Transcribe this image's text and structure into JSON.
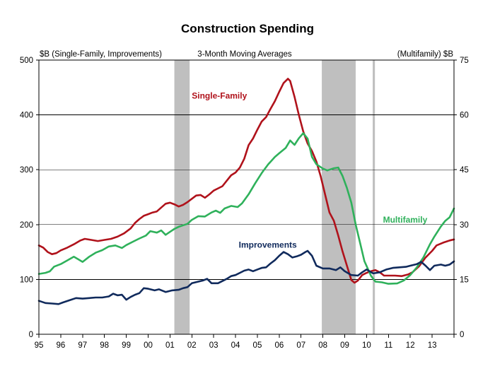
{
  "chart_data": {
    "type": "line",
    "title": "Construction Spending",
    "subtitle": "3-Month Moving Averages",
    "ylabel_left": "$B (Single-Family, Improvements)",
    "ylabel_right": "(Multifamily)  $B",
    "ylim_left": [
      0,
      500
    ],
    "ylim_right": [
      0,
      75
    ],
    "yticks_left": [
      0,
      100,
      200,
      300,
      400,
      500
    ],
    "yticks_right": [
      0,
      15,
      30,
      45,
      60,
      75
    ],
    "xlim": [
      1995,
      2014
    ],
    "xticks": [
      "95",
      "96",
      "97",
      "98",
      "99",
      "00",
      "01",
      "02",
      "03",
      "04",
      "05",
      "06",
      "07",
      "08",
      "09",
      "10",
      "11",
      "12",
      "13"
    ],
    "grid": true,
    "recessions": [
      {
        "start": 2001.2,
        "end": 2001.9
      },
      {
        "start": 2007.95,
        "end": 2009.5
      },
      {
        "start": 2010.28,
        "end": 2010.38
      }
    ],
    "series": [
      {
        "name": "Single-Family",
        "axis": "left",
        "color": "#b0121b",
        "label_at": [
          2002.0,
          430
        ],
        "points": [
          [
            1995.0,
            162
          ],
          [
            1995.2,
            158
          ],
          [
            1995.4,
            150
          ],
          [
            1995.6,
            146
          ],
          [
            1995.8,
            148
          ],
          [
            1996.0,
            153
          ],
          [
            1996.3,
            158
          ],
          [
            1996.6,
            164
          ],
          [
            1996.9,
            171
          ],
          [
            1997.1,
            174
          ],
          [
            1997.4,
            172
          ],
          [
            1997.7,
            170
          ],
          [
            1998.0,
            172
          ],
          [
            1998.3,
            174
          ],
          [
            1998.6,
            178
          ],
          [
            1998.9,
            184
          ],
          [
            1999.2,
            193
          ],
          [
            1999.4,
            203
          ],
          [
            1999.6,
            210
          ],
          [
            1999.8,
            216
          ],
          [
            2000.0,
            219
          ],
          [
            2000.2,
            222
          ],
          [
            2000.4,
            224
          ],
          [
            2000.6,
            231
          ],
          [
            2000.8,
            238
          ],
          [
            2001.0,
            240
          ],
          [
            2001.2,
            237
          ],
          [
            2001.4,
            233
          ],
          [
            2001.6,
            236
          ],
          [
            2001.8,
            241
          ],
          [
            2002.0,
            247
          ],
          [
            2002.2,
            253
          ],
          [
            2002.4,
            254
          ],
          [
            2002.6,
            249
          ],
          [
            2002.8,
            255
          ],
          [
            2003.0,
            262
          ],
          [
            2003.2,
            266
          ],
          [
            2003.4,
            270
          ],
          [
            2003.6,
            280
          ],
          [
            2003.8,
            290
          ],
          [
            2004.0,
            295
          ],
          [
            2004.2,
            304
          ],
          [
            2004.4,
            320
          ],
          [
            2004.6,
            345
          ],
          [
            2004.8,
            357
          ],
          [
            2005.0,
            373
          ],
          [
            2005.2,
            388
          ],
          [
            2005.4,
            396
          ],
          [
            2005.6,
            411
          ],
          [
            2005.8,
            425
          ],
          [
            2006.0,
            442
          ],
          [
            2006.2,
            458
          ],
          [
            2006.4,
            466
          ],
          [
            2006.5,
            462
          ],
          [
            2006.7,
            433
          ],
          [
            2006.9,
            400
          ],
          [
            2007.1,
            370
          ],
          [
            2007.3,
            348
          ],
          [
            2007.5,
            334
          ],
          [
            2007.7,
            315
          ],
          [
            2007.9,
            288
          ],
          [
            2008.1,
            255
          ],
          [
            2008.3,
            222
          ],
          [
            2008.5,
            207
          ],
          [
            2008.7,
            180
          ],
          [
            2008.9,
            151
          ],
          [
            2009.1,
            125
          ],
          [
            2009.3,
            99
          ],
          [
            2009.45,
            94
          ],
          [
            2009.6,
            98
          ],
          [
            2009.8,
            108
          ],
          [
            2010.0,
            112
          ],
          [
            2010.2,
            115
          ],
          [
            2010.4,
            117
          ],
          [
            2010.6,
            113
          ],
          [
            2010.8,
            107
          ],
          [
            2011.0,
            107
          ],
          [
            2011.3,
            107
          ],
          [
            2011.6,
            106
          ],
          [
            2011.9,
            109
          ],
          [
            2012.1,
            113
          ],
          [
            2012.4,
            124
          ],
          [
            2012.7,
            140
          ],
          [
            2013.0,
            152
          ],
          [
            2013.2,
            162
          ],
          [
            2013.5,
            167
          ],
          [
            2013.8,
            171
          ],
          [
            2014.0,
            173
          ]
        ]
      },
      {
        "name": "Multifamily",
        "axis": "right",
        "color": "#2fb15b",
        "label_at": [
          2010.75,
          30.5
        ],
        "points": [
          [
            1995.0,
            16.5
          ],
          [
            1995.3,
            16.8
          ],
          [
            1995.5,
            17.2
          ],
          [
            1995.7,
            18.5
          ],
          [
            1996.0,
            19.2
          ],
          [
            1996.3,
            20.2
          ],
          [
            1996.6,
            21.2
          ],
          [
            1996.8,
            20.5
          ],
          [
            1997.0,
            19.8
          ],
          [
            1997.3,
            21.2
          ],
          [
            1997.6,
            22.3
          ],
          [
            1997.9,
            23.0
          ],
          [
            1998.2,
            24.0
          ],
          [
            1998.5,
            24.3
          ],
          [
            1998.8,
            23.6
          ],
          [
            1999.0,
            24.4
          ],
          [
            1999.3,
            25.3
          ],
          [
            1999.6,
            26.2
          ],
          [
            1999.9,
            27.0
          ],
          [
            2000.1,
            28.2
          ],
          [
            2000.4,
            27.8
          ],
          [
            2000.6,
            28.4
          ],
          [
            2000.8,
            27.2
          ],
          [
            2001.0,
            28.0
          ],
          [
            2001.2,
            28.8
          ],
          [
            2001.4,
            29.4
          ],
          [
            2001.6,
            29.8
          ],
          [
            2001.8,
            30.2
          ],
          [
            2002.0,
            31.3
          ],
          [
            2002.3,
            32.3
          ],
          [
            2002.6,
            32.2
          ],
          [
            2002.9,
            33.3
          ],
          [
            2003.1,
            33.8
          ],
          [
            2003.3,
            33.2
          ],
          [
            2003.5,
            34.4
          ],
          [
            2003.8,
            35.1
          ],
          [
            2004.1,
            34.8
          ],
          [
            2004.3,
            35.8
          ],
          [
            2004.6,
            38.3
          ],
          [
            2004.9,
            41.3
          ],
          [
            2005.2,
            44.1
          ],
          [
            2005.5,
            46.5
          ],
          [
            2005.8,
            48.5
          ],
          [
            2006.0,
            49.5
          ],
          [
            2006.3,
            51.0
          ],
          [
            2006.5,
            53.0
          ],
          [
            2006.7,
            51.8
          ],
          [
            2006.9,
            53.6
          ],
          [
            2007.1,
            55.0
          ],
          [
            2007.3,
            53.5
          ],
          [
            2007.5,
            48.5
          ],
          [
            2007.7,
            46.5
          ],
          [
            2008.0,
            45.3
          ],
          [
            2008.2,
            44.8
          ],
          [
            2008.5,
            45.4
          ],
          [
            2008.7,
            45.6
          ],
          [
            2008.9,
            43.3
          ],
          [
            2009.1,
            40.0
          ],
          [
            2009.3,
            36.0
          ],
          [
            2009.5,
            30.0
          ],
          [
            2009.7,
            25.0
          ],
          [
            2009.9,
            20.0
          ],
          [
            2010.2,
            16.0
          ],
          [
            2010.4,
            14.4
          ],
          [
            2010.7,
            14.2
          ],
          [
            2011.0,
            13.8
          ],
          [
            2011.4,
            13.9
          ],
          [
            2011.7,
            14.7
          ],
          [
            2012.0,
            16.2
          ],
          [
            2012.3,
            18.3
          ],
          [
            2012.6,
            21.0
          ],
          [
            2012.9,
            24.6
          ],
          [
            2013.1,
            26.7
          ],
          [
            2013.4,
            29.5
          ],
          [
            2013.6,
            31.0
          ],
          [
            2013.8,
            32.0
          ],
          [
            2014.0,
            34.4
          ]
        ]
      },
      {
        "name": "Improvements",
        "axis": "left",
        "color": "#102a5c",
        "label_at": [
          2004.15,
          158
        ],
        "points": [
          [
            1995.0,
            61
          ],
          [
            1995.3,
            57
          ],
          [
            1995.6,
            56
          ],
          [
            1995.9,
            55
          ],
          [
            1996.1,
            58
          ],
          [
            1996.4,
            62
          ],
          [
            1996.7,
            66
          ],
          [
            1997.0,
            65
          ],
          [
            1997.3,
            66
          ],
          [
            1997.6,
            67
          ],
          [
            1997.9,
            67
          ],
          [
            1998.2,
            69
          ],
          [
            1998.4,
            74
          ],
          [
            1998.6,
            71
          ],
          [
            1998.8,
            72
          ],
          [
            1999.0,
            63
          ],
          [
            1999.2,
            68
          ],
          [
            1999.4,
            72
          ],
          [
            1999.6,
            75
          ],
          [
            1999.8,
            84
          ],
          [
            2000.0,
            83
          ],
          [
            2000.3,
            80
          ],
          [
            2000.5,
            82
          ],
          [
            2000.8,
            77
          ],
          [
            2001.1,
            80
          ],
          [
            2001.4,
            81
          ],
          [
            2001.6,
            84
          ],
          [
            2001.8,
            86
          ],
          [
            2002.0,
            93
          ],
          [
            2002.3,
            96
          ],
          [
            2002.5,
            98
          ],
          [
            2002.7,
            101
          ],
          [
            2002.9,
            93
          ],
          [
            2003.2,
            93
          ],
          [
            2003.4,
            97
          ],
          [
            2003.6,
            101
          ],
          [
            2003.8,
            106
          ],
          [
            2004.0,
            108
          ],
          [
            2004.2,
            112
          ],
          [
            2004.4,
            116
          ],
          [
            2004.6,
            118
          ],
          [
            2004.8,
            115
          ],
          [
            2005.0,
            118
          ],
          [
            2005.2,
            121
          ],
          [
            2005.4,
            122
          ],
          [
            2005.6,
            129
          ],
          [
            2005.8,
            135
          ],
          [
            2006.0,
            143
          ],
          [
            2006.2,
            150
          ],
          [
            2006.4,
            146
          ],
          [
            2006.6,
            140
          ],
          [
            2006.8,
            142
          ],
          [
            2007.0,
            145
          ],
          [
            2007.2,
            150
          ],
          [
            2007.3,
            152
          ],
          [
            2007.5,
            143
          ],
          [
            2007.7,
            125
          ],
          [
            2008.0,
            120
          ],
          [
            2008.3,
            120
          ],
          [
            2008.6,
            117
          ],
          [
            2008.8,
            122
          ],
          [
            2009.0,
            115
          ],
          [
            2009.3,
            108
          ],
          [
            2009.6,
            107
          ],
          [
            2009.8,
            113
          ],
          [
            2010.0,
            118
          ],
          [
            2010.3,
            111
          ],
          [
            2010.6,
            113
          ],
          [
            2010.9,
            118
          ],
          [
            2011.2,
            121
          ],
          [
            2011.5,
            122
          ],
          [
            2011.8,
            123
          ],
          [
            2012.0,
            125
          ],
          [
            2012.3,
            128
          ],
          [
            2012.5,
            132
          ],
          [
            2012.7,
            125
          ],
          [
            2012.9,
            117
          ],
          [
            2013.1,
            125
          ],
          [
            2013.4,
            127
          ],
          [
            2013.6,
            125
          ],
          [
            2013.8,
            127
          ],
          [
            2014.0,
            133
          ]
        ]
      }
    ]
  }
}
